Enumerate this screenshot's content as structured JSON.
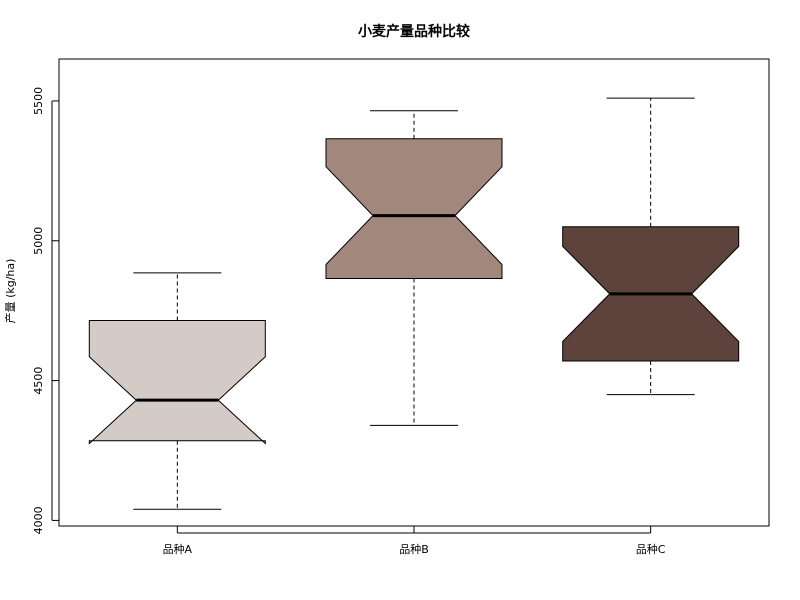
{
  "chart_data": {
    "type": "boxplot",
    "title": "小麦产量品种比较",
    "xlabel": "",
    "ylabel": "产量 (kg/ha)",
    "ylim": [
      3980,
      5650
    ],
    "yticks": [
      4000,
      4500,
      5000,
      5500
    ],
    "notched": true,
    "grid": false,
    "categories": [
      "品种A",
      "品种B",
      "品种C"
    ],
    "boxes": [
      {
        "category": "品种A",
        "whisker_low": 4040,
        "q1": 4285,
        "median": 4430,
        "q3": 4715,
        "whisker_high": 4885,
        "notch_low": 4275,
        "notch_high": 4585,
        "color": "#d5cbc6"
      },
      {
        "category": "品种B",
        "whisker_low": 4340,
        "q1": 4865,
        "median": 5090,
        "q3": 5365,
        "whisker_high": 5465,
        "notch_low": 4915,
        "notch_high": 5265,
        "color": "#a2877c"
      },
      {
        "category": "品种C",
        "whisker_low": 4450,
        "q1": 4570,
        "median": 4810,
        "q3": 5050,
        "whisker_high": 5510,
        "notch_low": 4640,
        "notch_high": 4980,
        "color": "#5d433b"
      }
    ]
  }
}
